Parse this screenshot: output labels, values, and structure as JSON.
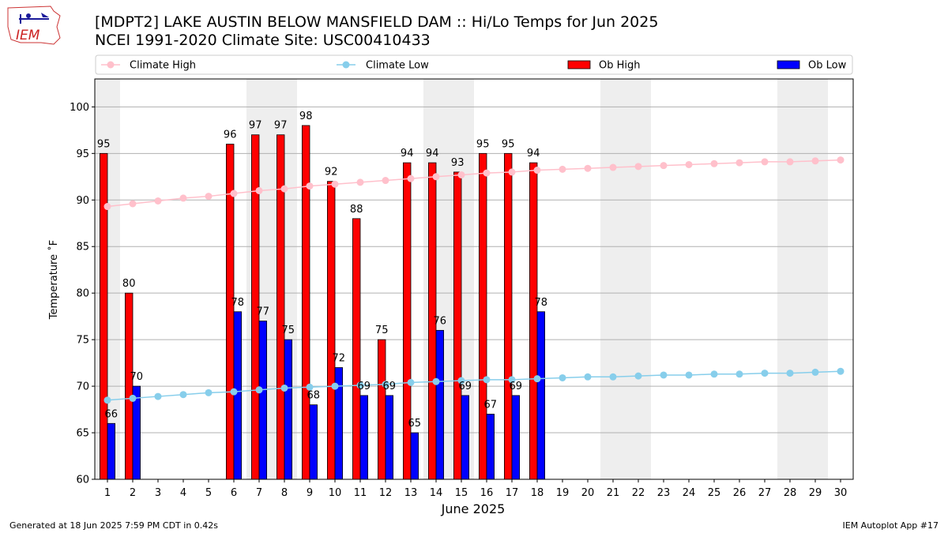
{
  "header": {
    "title": "[MDPT2] LAKE AUSTIN BELOW MANSFIELD DAM :: Hi/Lo Temps for Jun 2025",
    "subtitle": "NCEI 1991-2020 Climate Site: USC00410433",
    "logo_text": "IEM"
  },
  "footer": {
    "generated": "Generated at 18 Jun 2025 7:59 PM CDT in 0.42s",
    "app": "IEM Autoplot App #17"
  },
  "colors": {
    "climate_high": "#ffc0cb",
    "climate_low": "#87ceeb",
    "ob_high": "#ff0000",
    "ob_low": "#0000ff",
    "weekend_band": "#eeeeee",
    "grid": "#b0b0b0"
  },
  "chart_data": {
    "type": "bar",
    "xlabel": "June 2025",
    "ylabel": "Temperature ˚F",
    "ylim": [
      60,
      103
    ],
    "yticks": [
      60,
      65,
      70,
      75,
      80,
      85,
      90,
      95,
      100
    ],
    "grid": "horizontal",
    "legend_placement": "top, above plot",
    "days": [
      1,
      2,
      3,
      4,
      5,
      6,
      7,
      8,
      9,
      10,
      11,
      12,
      13,
      14,
      15,
      16,
      17,
      18,
      19,
      20,
      21,
      22,
      23,
      24,
      25,
      26,
      27,
      28,
      29,
      30
    ],
    "weekend_days": [
      1,
      7,
      8,
      14,
      15,
      21,
      22,
      28,
      29
    ],
    "series": [
      {
        "name": "Climate High",
        "kind": "line",
        "values": [
          89.3,
          89.6,
          89.9,
          90.2,
          90.4,
          90.7,
          91.0,
          91.2,
          91.5,
          91.7,
          91.9,
          92.1,
          92.3,
          92.5,
          92.7,
          92.9,
          93.0,
          93.2,
          93.3,
          93.4,
          93.5,
          93.6,
          93.7,
          93.8,
          93.9,
          94.0,
          94.1,
          94.1,
          94.2,
          94.3
        ]
      },
      {
        "name": "Climate Low",
        "kind": "line",
        "values": [
          68.5,
          68.7,
          68.9,
          69.1,
          69.3,
          69.4,
          69.6,
          69.8,
          69.9,
          70.0,
          70.1,
          70.2,
          70.4,
          70.5,
          70.6,
          70.7,
          70.7,
          70.8,
          70.9,
          71.0,
          71.0,
          71.1,
          71.2,
          71.2,
          71.3,
          71.3,
          71.4,
          71.4,
          71.5,
          71.6
        ]
      },
      {
        "name": "Ob High",
        "kind": "bar",
        "values": [
          95,
          80,
          null,
          null,
          null,
          96,
          97,
          97,
          98,
          92,
          88,
          75,
          94,
          94,
          93,
          95,
          95,
          94,
          null,
          null,
          null,
          null,
          null,
          null,
          null,
          null,
          null,
          null,
          null,
          null
        ],
        "labels": [
          "95",
          "80",
          "",
          "",
          "",
          "96",
          "97",
          "97",
          "98",
          "92",
          "88",
          "75",
          "94",
          "94",
          "93",
          "95",
          "95",
          "94",
          "",
          "",
          "",
          "",
          "",
          "",
          "",
          "",
          "",
          "",
          "",
          ""
        ]
      },
      {
        "name": "Ob Low",
        "kind": "bar",
        "values": [
          66,
          70,
          null,
          null,
          null,
          78,
          77,
          75,
          68,
          72,
          69,
          69,
          65,
          76,
          69,
          67,
          69,
          78,
          null,
          null,
          null,
          null,
          null,
          null,
          null,
          null,
          null,
          null,
          null,
          null
        ],
        "labels": [
          "66",
          "70",
          "",
          "",
          "",
          "78",
          "77",
          "75",
          "68",
          "72",
          "69",
          "69",
          "65",
          "76",
          "69",
          "67",
          "69",
          "78",
          "",
          "",
          "",
          "",
          "",
          "",
          "",
          "",
          "",
          "",
          "",
          ""
        ]
      }
    ]
  }
}
